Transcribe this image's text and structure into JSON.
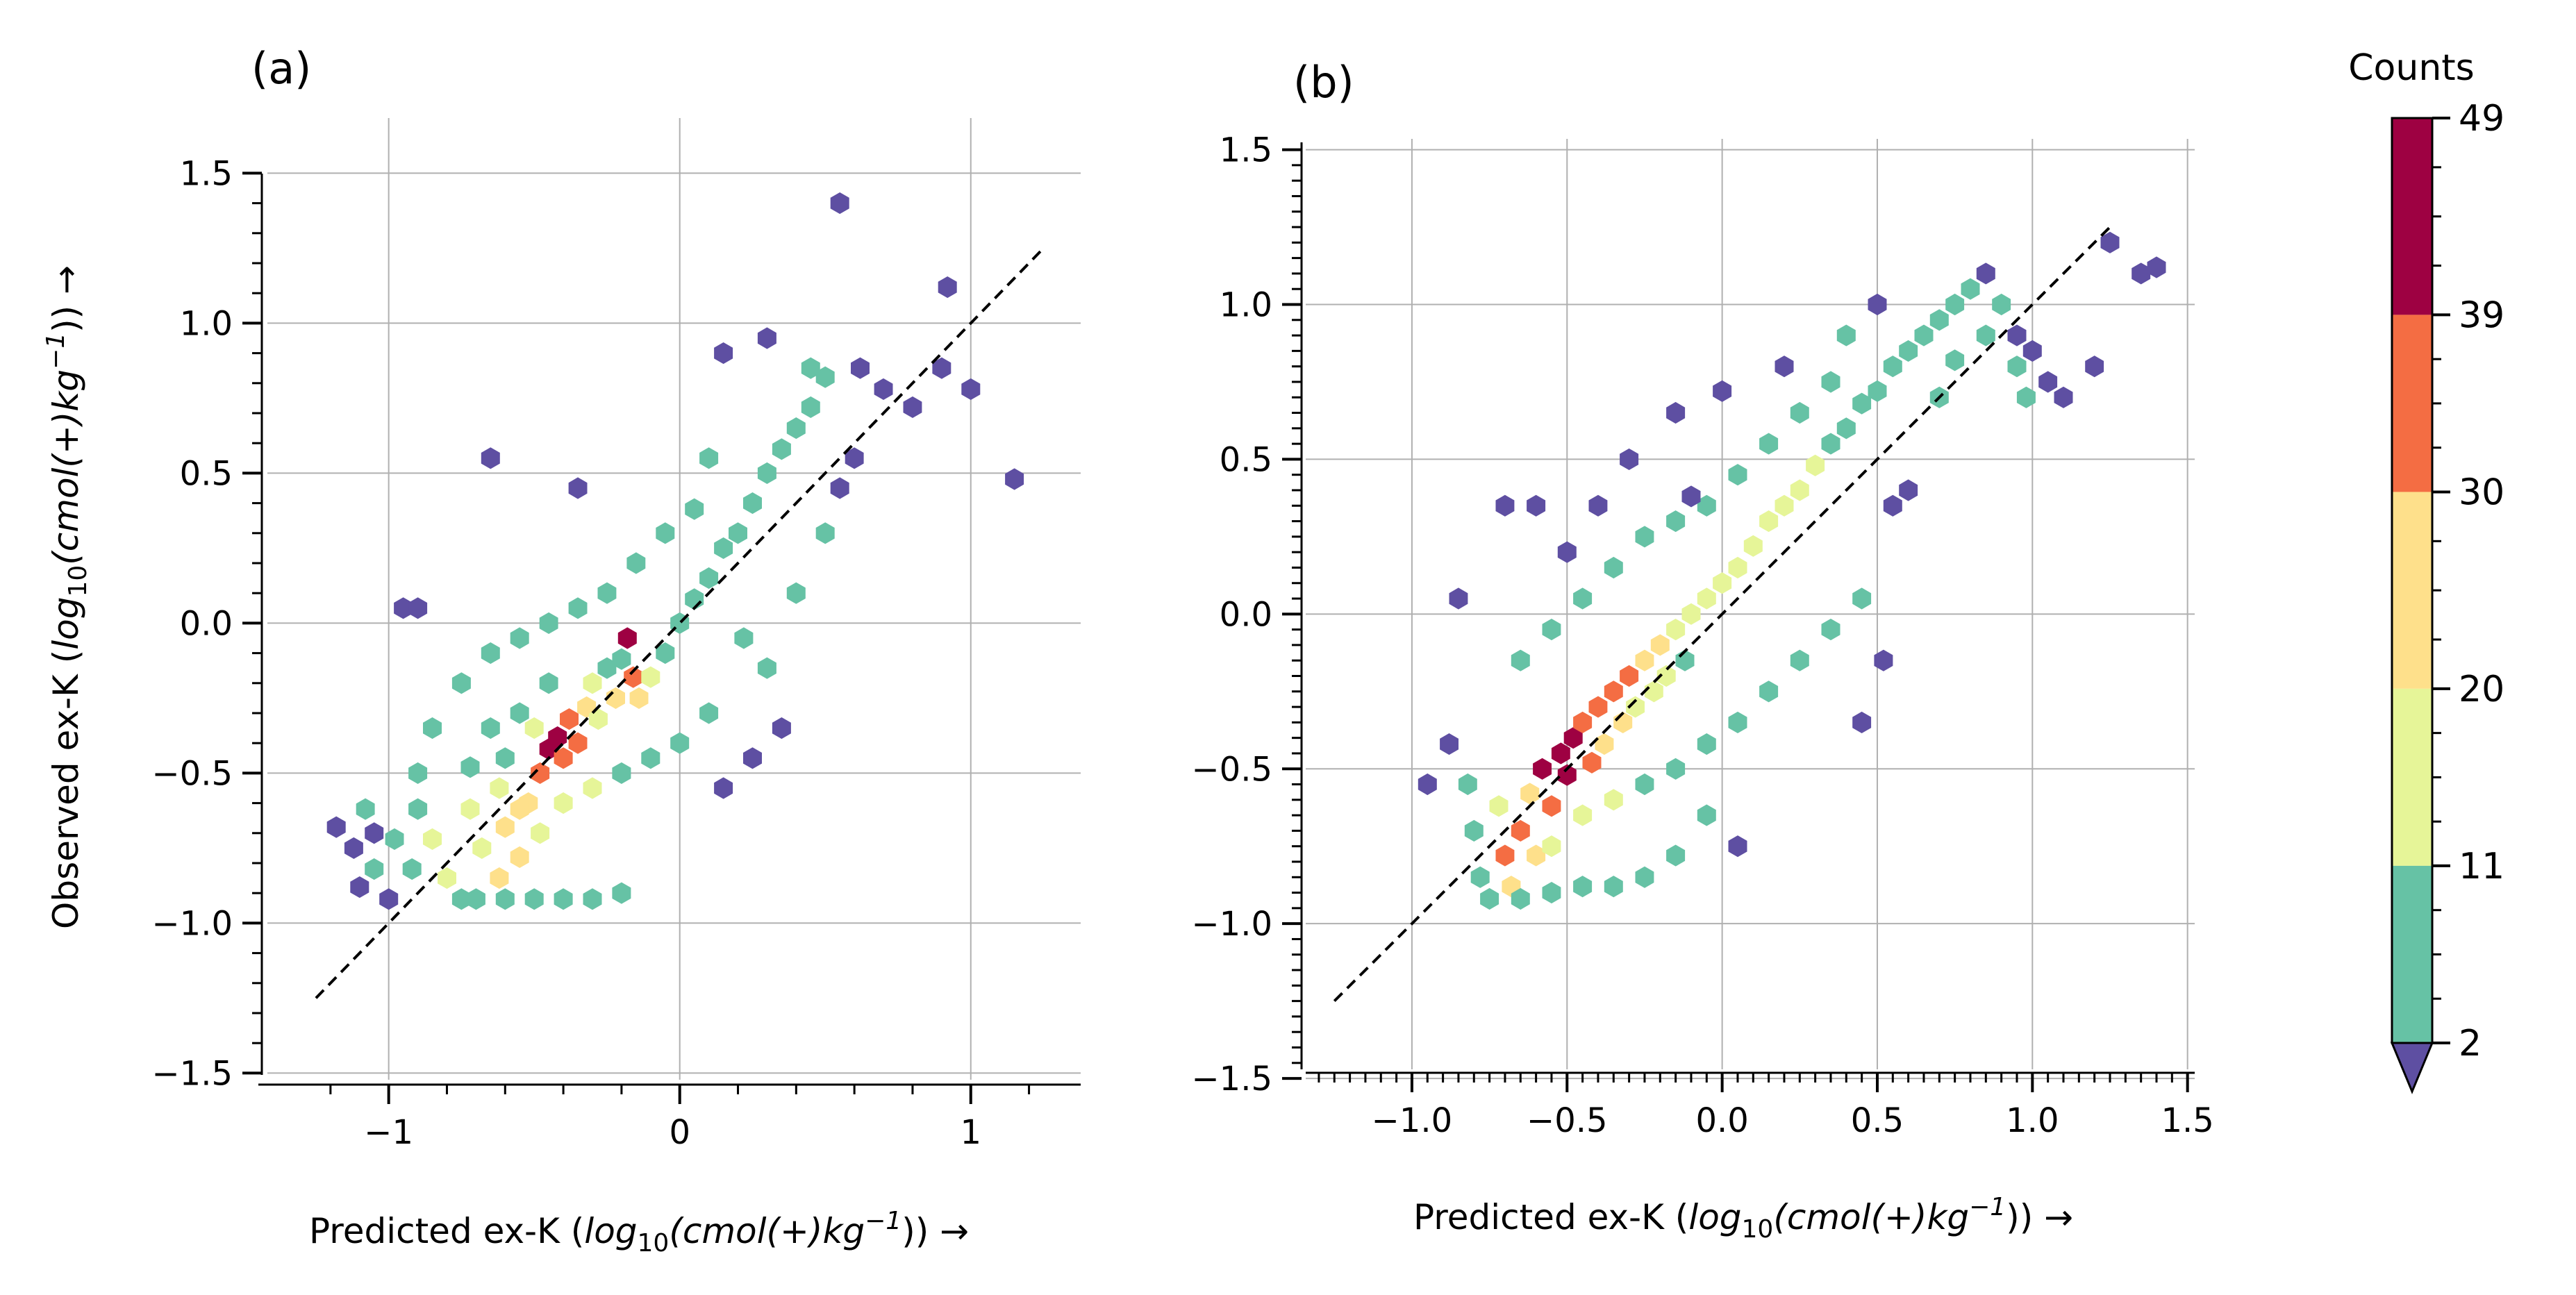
{
  "chart_data": [
    {
      "type": "hexbin",
      "panel_label": "(a)",
      "xlabel": {
        "prefix": "Predicted ex-K (",
        "log": "log",
        "sub10": "10",
        "cmol": "(cmol(+)kg",
        "sup": "−1",
        "suffix": ")) →"
      },
      "ylabel": {
        "prefix": "Observed ex-K (",
        "log": "log",
        "sub10": "10",
        "cmol": "(cmol(+)kg",
        "sup": "−1",
        "suffix": ")) →"
      },
      "xlim": [
        -1.35,
        1.38
      ],
      "ylim": [
        -1.55,
        1.7
      ],
      "xticks": [
        -1,
        0,
        1
      ],
      "xtick_labels": [
        "−1",
        "0",
        "1"
      ],
      "yticks": [
        -1.5,
        -1.0,
        -0.5,
        0.0,
        0.5,
        1.0,
        1.5
      ],
      "ytick_labels": [
        "−1.5",
        "−1.0",
        "−0.5",
        "0.0",
        "0.5",
        "1.0",
        "1.5"
      ],
      "reference_line": [
        [
          -1.25,
          -1.25
        ],
        [
          1.25,
          1.25
        ]
      ],
      "grid": true,
      "cells": [
        [
          -1.18,
          -0.68,
          1
        ],
        [
          -1.08,
          -0.62,
          2
        ],
        [
          -1.12,
          -0.75,
          1
        ],
        [
          -1.05,
          -0.82,
          2
        ],
        [
          -1.0,
          -0.92,
          1
        ],
        [
          -1.1,
          -0.88,
          1
        ],
        [
          -0.98,
          -0.72,
          6
        ],
        [
          -0.92,
          -0.82,
          9
        ],
        [
          -0.9,
          -0.62,
          4
        ],
        [
          -0.85,
          -0.72,
          12
        ],
        [
          -0.8,
          -0.85,
          15
        ],
        [
          -0.75,
          -0.92,
          10
        ],
        [
          -0.72,
          -0.62,
          14
        ],
        [
          -0.68,
          -0.75,
          18
        ],
        [
          -0.62,
          -0.85,
          22
        ],
        [
          -0.6,
          -0.68,
          24
        ],
        [
          -0.55,
          -0.78,
          21
        ],
        [
          -0.52,
          -0.6,
          26
        ],
        [
          -0.48,
          -0.5,
          34
        ],
        [
          -0.45,
          -0.42,
          43
        ],
        [
          -0.42,
          -0.38,
          47
        ],
        [
          -0.4,
          -0.45,
          36
        ],
        [
          -0.38,
          -0.32,
          30
        ],
        [
          -0.35,
          -0.4,
          32
        ],
        [
          -0.32,
          -0.28,
          22
        ],
        [
          -0.3,
          -0.2,
          14
        ],
        [
          -0.28,
          -0.32,
          18
        ],
        [
          -0.25,
          -0.15,
          9
        ],
        [
          -0.22,
          -0.25,
          20
        ],
        [
          -0.2,
          -0.12,
          8
        ],
        [
          -0.18,
          -0.05,
          44
        ],
        [
          -0.16,
          -0.18,
          35
        ],
        [
          -0.14,
          -0.25,
          25
        ],
        [
          -0.1,
          -0.18,
          12
        ],
        [
          -0.05,
          -0.1,
          9
        ],
        [
          0.0,
          0.0,
          7
        ],
        [
          0.05,
          0.08,
          8
        ],
        [
          0.1,
          0.15,
          6
        ],
        [
          0.15,
          0.25,
          7
        ],
        [
          0.2,
          0.3,
          5
        ],
        [
          0.25,
          0.4,
          6
        ],
        [
          0.3,
          0.5,
          5
        ],
        [
          0.35,
          0.58,
          4
        ],
        [
          0.4,
          0.65,
          4
        ],
        [
          0.45,
          0.72,
          3
        ],
        [
          0.5,
          0.82,
          2
        ],
        [
          0.55,
          1.4,
          1
        ],
        [
          0.62,
          0.85,
          1
        ],
        [
          0.7,
          0.78,
          1
        ],
        [
          0.8,
          0.72,
          1
        ],
        [
          0.9,
          0.85,
          1
        ],
        [
          0.92,
          1.12,
          1
        ],
        [
          1.0,
          0.78,
          1
        ],
        [
          1.15,
          0.48,
          1
        ],
        [
          -0.95,
          0.05,
          1
        ],
        [
          -0.9,
          0.05,
          1
        ],
        [
          -0.65,
          0.55,
          1
        ],
        [
          -0.35,
          0.45,
          1
        ],
        [
          0.3,
          0.95,
          1
        ],
        [
          0.15,
          0.9,
          1
        ],
        [
          -0.45,
          -0.2,
          6
        ],
        [
          -0.55,
          -0.3,
          5
        ],
        [
          -0.65,
          -0.35,
          5
        ],
        [
          -0.72,
          -0.48,
          6
        ],
        [
          -0.6,
          -0.45,
          10
        ],
        [
          -0.5,
          -0.35,
          12
        ],
        [
          -0.62,
          -0.55,
          18
        ],
        [
          -0.55,
          -0.62,
          24
        ],
        [
          -0.48,
          -0.7,
          16
        ],
        [
          -0.4,
          -0.6,
          15
        ],
        [
          -0.3,
          -0.55,
          12
        ],
        [
          -0.2,
          -0.5,
          9
        ],
        [
          -0.1,
          -0.45,
          6
        ],
        [
          0.0,
          -0.4,
          4
        ],
        [
          0.1,
          -0.3,
          3
        ],
        [
          0.15,
          -0.55,
          1
        ],
        [
          0.25,
          -0.45,
          1
        ],
        [
          0.35,
          -0.35,
          1
        ],
        [
          0.3,
          -0.15,
          3
        ],
        [
          0.22,
          -0.05,
          4
        ],
        [
          0.4,
          0.1,
          3
        ],
        [
          0.5,
          0.3,
          2
        ],
        [
          0.55,
          0.45,
          1
        ],
        [
          0.1,
          0.55,
          4
        ],
        [
          0.05,
          0.38,
          5
        ],
        [
          -0.05,
          0.3,
          6
        ],
        [
          -0.15,
          0.2,
          5
        ],
        [
          -0.25,
          0.1,
          7
        ],
        [
          -0.35,
          0.05,
          6
        ],
        [
          -0.45,
          0.0,
          5
        ],
        [
          -0.55,
          -0.05,
          4
        ],
        [
          -0.65,
          -0.1,
          3
        ],
        [
          -0.75,
          -0.2,
          2
        ],
        [
          -0.85,
          -0.35,
          2
        ],
        [
          -0.9,
          -0.5,
          3
        ],
        [
          -1.05,
          -0.7,
          1
        ],
        [
          -0.7,
          -0.92,
          8
        ],
        [
          -0.6,
          -0.92,
          9
        ],
        [
          -0.5,
          -0.92,
          7
        ],
        [
          -0.4,
          -0.92,
          6
        ],
        [
          -0.3,
          -0.92,
          5
        ],
        [
          -0.2,
          -0.9,
          4
        ],
        [
          0.6,
          0.55,
          1
        ],
        [
          0.45,
          0.85,
          2
        ]
      ]
    },
    {
      "type": "hexbin",
      "panel_label": "(b)",
      "xlabel": {
        "prefix": "Predicted ex-K (",
        "log": "log",
        "sub10": "10",
        "cmol": "(cmol(+)kg",
        "sup": "−1",
        "suffix": ")) →"
      },
      "xlim": [
        -1.32,
        1.55
      ],
      "ylim": [
        -1.52,
        1.6
      ],
      "xticks": [
        -1.0,
        -0.5,
        0.0,
        0.5,
        1.0,
        1.5
      ],
      "xtick_labels": [
        "−1.0",
        "−0.5",
        "0.0",
        "0.5",
        "1.0",
        "1.5"
      ],
      "yticks": [
        -1.5,
        -1.0,
        -0.5,
        0.0,
        0.5,
        1.0,
        1.5
      ],
      "ytick_labels": [
        "−1.5",
        "−1.0",
        "−0.5",
        "0.0",
        "0.5",
        "1.0",
        "1.5"
      ],
      "reference_line": [
        [
          -1.25,
          -1.25
        ],
        [
          1.25,
          1.25
        ]
      ],
      "grid": true,
      "cells": [
        [
          -0.88,
          -0.42,
          1
        ],
        [
          -0.82,
          -0.55,
          3
        ],
        [
          -0.8,
          -0.7,
          5
        ],
        [
          -0.78,
          -0.85,
          7
        ],
        [
          -0.72,
          -0.62,
          18
        ],
        [
          -0.7,
          -0.78,
          32
        ],
        [
          -0.68,
          -0.88,
          24
        ],
        [
          -0.65,
          -0.7,
          36
        ],
        [
          -0.62,
          -0.58,
          28
        ],
        [
          -0.6,
          -0.78,
          22
        ],
        [
          -0.58,
          -0.5,
          40
        ],
        [
          -0.55,
          -0.62,
          38
        ],
        [
          -0.52,
          -0.45,
          44
        ],
        [
          -0.5,
          -0.52,
          47
        ],
        [
          -0.48,
          -0.4,
          42
        ],
        [
          -0.45,
          -0.35,
          38
        ],
        [
          -0.42,
          -0.48,
          30
        ],
        [
          -0.4,
          -0.3,
          36
        ],
        [
          -0.38,
          -0.42,
          26
        ],
        [
          -0.35,
          -0.25,
          33
        ],
        [
          -0.32,
          -0.35,
          22
        ],
        [
          -0.3,
          -0.2,
          32
        ],
        [
          -0.28,
          -0.3,
          18
        ],
        [
          -0.25,
          -0.15,
          26
        ],
        [
          -0.22,
          -0.25,
          14
        ],
        [
          -0.2,
          -0.1,
          22
        ],
        [
          -0.18,
          -0.2,
          12
        ],
        [
          -0.15,
          -0.05,
          18
        ],
        [
          -0.12,
          -0.15,
          10
        ],
        [
          -0.1,
          0.0,
          16
        ],
        [
          -0.05,
          0.05,
          14
        ],
        [
          0.0,
          0.1,
          12
        ],
        [
          0.05,
          0.15,
          14
        ],
        [
          0.1,
          0.22,
          12
        ],
        [
          0.15,
          0.3,
          16
        ],
        [
          0.2,
          0.35,
          14
        ],
        [
          0.25,
          0.4,
          12
        ],
        [
          0.3,
          0.48,
          12
        ],
        [
          0.35,
          0.55,
          10
        ],
        [
          0.4,
          0.6,
          8
        ],
        [
          0.45,
          0.68,
          6
        ],
        [
          0.5,
          0.72,
          6
        ],
        [
          0.55,
          0.8,
          5
        ],
        [
          0.6,
          0.85,
          4
        ],
        [
          0.65,
          0.9,
          4
        ],
        [
          0.7,
          0.95,
          3
        ],
        [
          0.75,
          1.0,
          2
        ],
        [
          0.8,
          1.05,
          2
        ],
        [
          0.85,
          1.1,
          1
        ],
        [
          0.9,
          1.0,
          2
        ],
        [
          0.95,
          0.9,
          1
        ],
        [
          1.0,
          0.85,
          1
        ],
        [
          1.05,
          0.75,
          1
        ],
        [
          1.1,
          0.7,
          1
        ],
        [
          1.2,
          0.8,
          1
        ],
        [
          1.25,
          1.2,
          1
        ],
        [
          1.35,
          1.1,
          1
        ],
        [
          1.4,
          1.12,
          1
        ],
        [
          -0.55,
          -0.75,
          15
        ],
        [
          -0.45,
          -0.65,
          14
        ],
        [
          -0.35,
          -0.6,
          12
        ],
        [
          -0.25,
          -0.55,
          9
        ],
        [
          -0.15,
          -0.5,
          7
        ],
        [
          -0.05,
          -0.42,
          6
        ],
        [
          0.05,
          -0.35,
          5
        ],
        [
          0.15,
          -0.25,
          4
        ],
        [
          0.25,
          -0.15,
          3
        ],
        [
          0.35,
          -0.05,
          2
        ],
        [
          0.45,
          0.05,
          2
        ],
        [
          0.52,
          -0.15,
          1
        ],
        [
          0.45,
          -0.35,
          1
        ],
        [
          0.05,
          -0.75,
          1
        ],
        [
          -0.05,
          -0.65,
          2
        ],
        [
          -0.15,
          -0.78,
          3
        ],
        [
          -0.25,
          -0.85,
          4
        ],
        [
          -0.35,
          -0.88,
          5
        ],
        [
          -0.45,
          -0.88,
          6
        ],
        [
          -0.55,
          -0.9,
          6
        ],
        [
          -0.65,
          -0.92,
          5
        ],
        [
          -0.75,
          -0.92,
          4
        ],
        [
          -0.45,
          0.05,
          3
        ],
        [
          -0.55,
          -0.05,
          4
        ],
        [
          -0.65,
          -0.15,
          3
        ],
        [
          -0.35,
          0.15,
          2
        ],
        [
          -0.25,
          0.25,
          3
        ],
        [
          -0.15,
          0.3,
          3
        ],
        [
          -0.05,
          0.35,
          4
        ],
        [
          0.05,
          0.45,
          4
        ],
        [
          0.15,
          0.55,
          3
        ],
        [
          0.25,
          0.65,
          3
        ],
        [
          0.35,
          0.75,
          2
        ],
        [
          0.4,
          0.9,
          2
        ],
        [
          0.5,
          1.0,
          1
        ],
        [
          -0.7,
          0.35,
          1
        ],
        [
          -0.6,
          0.35,
          1
        ],
        [
          -0.5,
          0.2,
          1
        ],
        [
          -0.4,
          0.35,
          1
        ],
        [
          -0.85,
          0.05,
          1
        ],
        [
          -0.15,
          0.65,
          1
        ],
        [
          -0.1,
          0.38,
          1
        ],
        [
          0.0,
          0.72,
          1
        ],
        [
          0.2,
          0.8,
          1
        ],
        [
          0.7,
          0.7,
          3
        ],
        [
          0.75,
          0.82,
          4
        ],
        [
          0.85,
          0.9,
          4
        ],
        [
          0.95,
          0.8,
          3
        ],
        [
          0.98,
          0.7,
          2
        ],
        [
          -0.3,
          0.5,
          1
        ],
        [
          0.55,
          0.35,
          1
        ],
        [
          0.6,
          0.4,
          1
        ],
        [
          -0.95,
          -0.55,
          1
        ]
      ]
    }
  ],
  "colorbar": {
    "title": "Counts",
    "ticks": [
      "49",
      "39",
      "30",
      "20",
      "11",
      "2"
    ],
    "tick_values": [
      49,
      39,
      30,
      20,
      11,
      2
    ],
    "bands": [
      {
        "from": 39,
        "to": 49,
        "color": "#9e0142"
      },
      {
        "from": 30,
        "to": 39,
        "color": "#f46d43"
      },
      {
        "from": 20,
        "to": 30,
        "color": "#fee08b"
      },
      {
        "from": 11,
        "to": 20,
        "color": "#e6f598"
      },
      {
        "from": 2,
        "to": 11,
        "color": "#66c2a5"
      }
    ],
    "under_color": "#5e4fa2"
  }
}
